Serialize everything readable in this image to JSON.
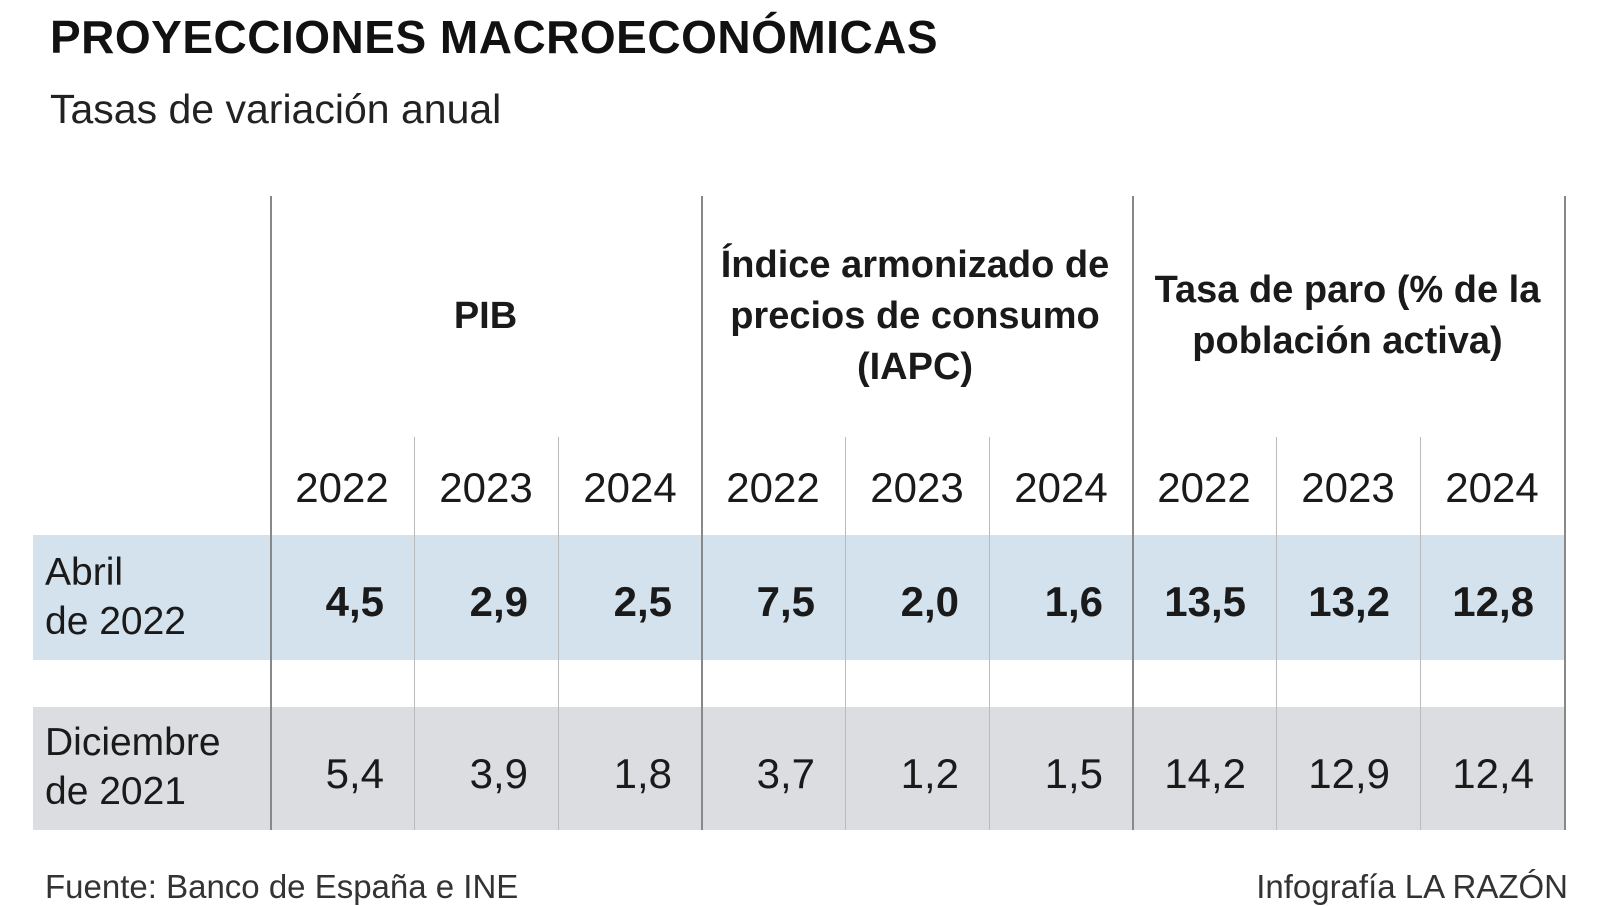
{
  "title": "PROYECCIONES MACROECONÓMICAS",
  "subtitle": "Tasas de variación anual",
  "groups": [
    {
      "label": "PIB"
    },
    {
      "label": "Índice armonizado de precios de consumo (IAPC)"
    },
    {
      "label": "Tasa de paro (% de la población activa)"
    }
  ],
  "years": [
    "2022",
    "2023",
    "2024",
    "2022",
    "2023",
    "2024",
    "2022",
    "2023",
    "2024"
  ],
  "rows": [
    {
      "label_line1": "Abril",
      "label_line2": "de 2022",
      "values": [
        "4,5",
        "2,9",
        "2,5",
        "7,5",
        "2,0",
        "1,6",
        "13,5",
        "13,2",
        "12,8"
      ]
    },
    {
      "label_line1": "Diciembre",
      "label_line2": "de 2021",
      "values": [
        "5,4",
        "3,9",
        "1,8",
        "3,7",
        "1,2",
        "1,5",
        "14,2",
        "12,9",
        "12,4"
      ]
    }
  ],
  "colors": {
    "row_current": "#d3e2ec",
    "row_previous": "#dcdde0"
  },
  "footer": {
    "source": "Fuente: Banco de España e INE",
    "credit": "Infografía LA RAZÓN"
  }
}
